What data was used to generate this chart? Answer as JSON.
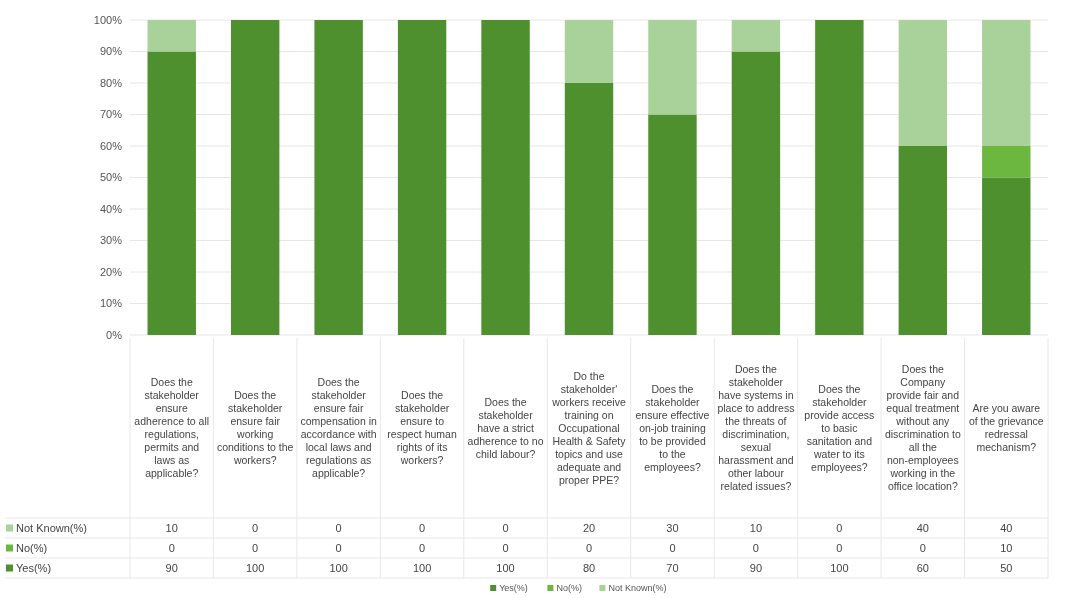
{
  "chart_data": {
    "type": "bar",
    "stacked": true,
    "categories": [
      "Does the stakeholder ensure adherence to all regulations, permits and laws as applicable?",
      "Does the stakeholder ensure fair working conditions to the workers?",
      "Does the stakeholder ensure fair compensation in accordance with local laws and regulations as applicable?",
      "Does the stakeholder ensure to respect human rights of its workers?",
      "Does the stakeholder have a strict adherence to no child labour?",
      "Do the stakeholder' workers receive training on Occupational Health & Safety topics and use adequate and proper PPE?",
      "Does the stakeholder ensure effective on-job training to be provided to the employees?",
      "Does the stakeholder have systems in place to address the threats of discrimination, sexual harassment and other labour related issues?",
      "Does the stakeholder provide access to basic sanitation and water to its employees?",
      "Does the Company provide fair and equal treatment without any discrimination to all the non-employees working in the office location?",
      "Are you aware of the grievance redressal mechanism?"
    ],
    "series": [
      {
        "name": "Yes(%)",
        "color": "#4e8f2e",
        "values": [
          90,
          100,
          100,
          100,
          100,
          80,
          70,
          90,
          100,
          60,
          50
        ]
      },
      {
        "name": "No(%)",
        "color": "#6cb83f",
        "values": [
          0,
          0,
          0,
          0,
          0,
          0,
          0,
          0,
          0,
          0,
          10
        ]
      },
      {
        "name": "Not Known(%)",
        "color": "#a9d29b",
        "values": [
          10,
          0,
          0,
          0,
          0,
          20,
          30,
          10,
          0,
          40,
          40
        ]
      }
    ],
    "ylim": [
      0,
      100
    ],
    "yticks": [
      {
        "value": 0,
        "label": "0%"
      },
      {
        "value": 10,
        "label": "10%"
      },
      {
        "value": 20,
        "label": "20%"
      },
      {
        "value": 30,
        "label": "30%"
      },
      {
        "value": 40,
        "label": "40%"
      },
      {
        "value": 50,
        "label": "50%"
      },
      {
        "value": 60,
        "label": "60%"
      },
      {
        "value": 70,
        "label": "70%"
      },
      {
        "value": 80,
        "label": "80%"
      },
      {
        "value": 90,
        "label": "90%"
      },
      {
        "value": 100,
        "label": "100%"
      }
    ],
    "grid": "y",
    "legend": "bottom",
    "data_labels": true
  }
}
